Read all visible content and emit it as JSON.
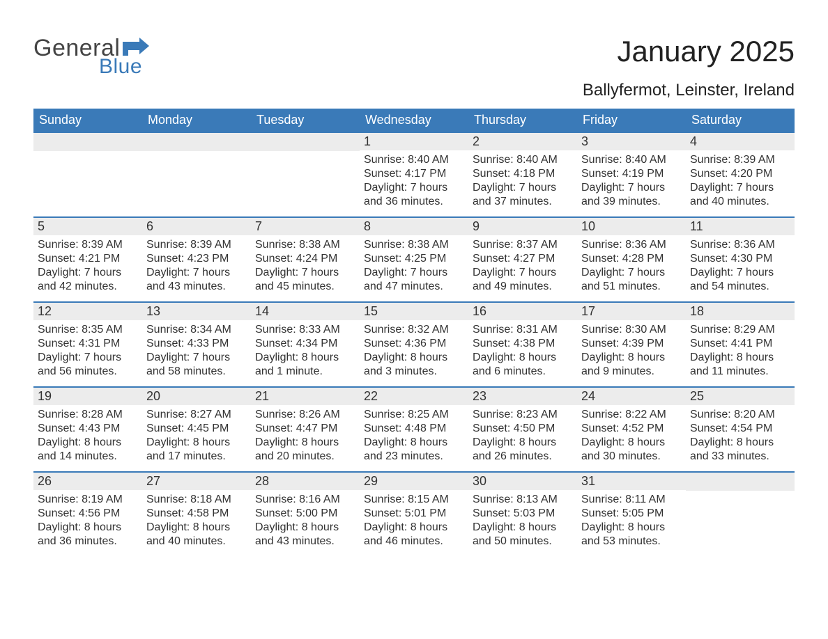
{
  "logo": {
    "line1": "General",
    "line2": "Blue",
    "flag_color": "#3a7ab8"
  },
  "title": "January 2025",
  "location": "Ballyfermot, Leinster, Ireland",
  "colors": {
    "header_bg": "#3a7ab8",
    "header_text": "#ffffff",
    "daynum_bg": "#ececec",
    "text": "#333333",
    "rule": "#3a7ab8",
    "background": "#ffffff"
  },
  "typography": {
    "title_fontsize": 42,
    "location_fontsize": 24,
    "dayhead_fontsize": 18,
    "daynum_fontsize": 18,
    "body_fontsize": 16
  },
  "day_names": [
    "Sunday",
    "Monday",
    "Tuesday",
    "Wednesday",
    "Thursday",
    "Friday",
    "Saturday"
  ],
  "labels": {
    "sunrise": "Sunrise:",
    "sunset": "Sunset:",
    "daylight": "Daylight:"
  },
  "weeks": [
    [
      null,
      null,
      null,
      {
        "n": "1",
        "sunrise": "8:40 AM",
        "sunset": "4:17 PM",
        "daylight": "7 hours and 36 minutes."
      },
      {
        "n": "2",
        "sunrise": "8:40 AM",
        "sunset": "4:18 PM",
        "daylight": "7 hours and 37 minutes."
      },
      {
        "n": "3",
        "sunrise": "8:40 AM",
        "sunset": "4:19 PM",
        "daylight": "7 hours and 39 minutes."
      },
      {
        "n": "4",
        "sunrise": "8:39 AM",
        "sunset": "4:20 PM",
        "daylight": "7 hours and 40 minutes."
      }
    ],
    [
      {
        "n": "5",
        "sunrise": "8:39 AM",
        "sunset": "4:21 PM",
        "daylight": "7 hours and 42 minutes."
      },
      {
        "n": "6",
        "sunrise": "8:39 AM",
        "sunset": "4:23 PM",
        "daylight": "7 hours and 43 minutes."
      },
      {
        "n": "7",
        "sunrise": "8:38 AM",
        "sunset": "4:24 PM",
        "daylight": "7 hours and 45 minutes."
      },
      {
        "n": "8",
        "sunrise": "8:38 AM",
        "sunset": "4:25 PM",
        "daylight": "7 hours and 47 minutes."
      },
      {
        "n": "9",
        "sunrise": "8:37 AM",
        "sunset": "4:27 PM",
        "daylight": "7 hours and 49 minutes."
      },
      {
        "n": "10",
        "sunrise": "8:36 AM",
        "sunset": "4:28 PM",
        "daylight": "7 hours and 51 minutes."
      },
      {
        "n": "11",
        "sunrise": "8:36 AM",
        "sunset": "4:30 PM",
        "daylight": "7 hours and 54 minutes."
      }
    ],
    [
      {
        "n": "12",
        "sunrise": "8:35 AM",
        "sunset": "4:31 PM",
        "daylight": "7 hours and 56 minutes."
      },
      {
        "n": "13",
        "sunrise": "8:34 AM",
        "sunset": "4:33 PM",
        "daylight": "7 hours and 58 minutes."
      },
      {
        "n": "14",
        "sunrise": "8:33 AM",
        "sunset": "4:34 PM",
        "daylight": "8 hours and 1 minute."
      },
      {
        "n": "15",
        "sunrise": "8:32 AM",
        "sunset": "4:36 PM",
        "daylight": "8 hours and 3 minutes."
      },
      {
        "n": "16",
        "sunrise": "8:31 AM",
        "sunset": "4:38 PM",
        "daylight": "8 hours and 6 minutes."
      },
      {
        "n": "17",
        "sunrise": "8:30 AM",
        "sunset": "4:39 PM",
        "daylight": "8 hours and 9 minutes."
      },
      {
        "n": "18",
        "sunrise": "8:29 AM",
        "sunset": "4:41 PM",
        "daylight": "8 hours and 11 minutes."
      }
    ],
    [
      {
        "n": "19",
        "sunrise": "8:28 AM",
        "sunset": "4:43 PM",
        "daylight": "8 hours and 14 minutes."
      },
      {
        "n": "20",
        "sunrise": "8:27 AM",
        "sunset": "4:45 PM",
        "daylight": "8 hours and 17 minutes."
      },
      {
        "n": "21",
        "sunrise": "8:26 AM",
        "sunset": "4:47 PM",
        "daylight": "8 hours and 20 minutes."
      },
      {
        "n": "22",
        "sunrise": "8:25 AM",
        "sunset": "4:48 PM",
        "daylight": "8 hours and 23 minutes."
      },
      {
        "n": "23",
        "sunrise": "8:23 AM",
        "sunset": "4:50 PM",
        "daylight": "8 hours and 26 minutes."
      },
      {
        "n": "24",
        "sunrise": "8:22 AM",
        "sunset": "4:52 PM",
        "daylight": "8 hours and 30 minutes."
      },
      {
        "n": "25",
        "sunrise": "8:20 AM",
        "sunset": "4:54 PM",
        "daylight": "8 hours and 33 minutes."
      }
    ],
    [
      {
        "n": "26",
        "sunrise": "8:19 AM",
        "sunset": "4:56 PM",
        "daylight": "8 hours and 36 minutes."
      },
      {
        "n": "27",
        "sunrise": "8:18 AM",
        "sunset": "4:58 PM",
        "daylight": "8 hours and 40 minutes."
      },
      {
        "n": "28",
        "sunrise": "8:16 AM",
        "sunset": "5:00 PM",
        "daylight": "8 hours and 43 minutes."
      },
      {
        "n": "29",
        "sunrise": "8:15 AM",
        "sunset": "5:01 PM",
        "daylight": "8 hours and 46 minutes."
      },
      {
        "n": "30",
        "sunrise": "8:13 AM",
        "sunset": "5:03 PM",
        "daylight": "8 hours and 50 minutes."
      },
      {
        "n": "31",
        "sunrise": "8:11 AM",
        "sunset": "5:05 PM",
        "daylight": "8 hours and 53 minutes."
      },
      null
    ]
  ]
}
